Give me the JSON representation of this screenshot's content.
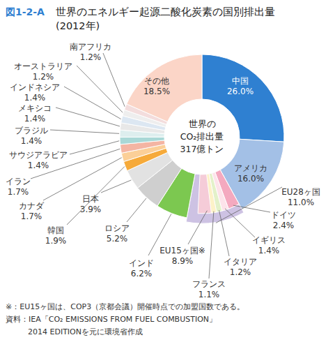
{
  "chart_data": {
    "type": "pie",
    "figure_label": "図1-2-A",
    "title": "世界のエネルギー起源二酸化炭素の国別排出量",
    "subtitle": "(2012年)",
    "center_label": [
      "世界の",
      "CO₂排出量",
      "317億トン"
    ],
    "categories": [
      "中国",
      "アメリカ",
      "EU28ヶ国",
      "インド",
      "ロシア",
      "日本",
      "韓国",
      "カナダ",
      "イラン",
      "サウジアラビア",
      "ブラジル",
      "メキシコ",
      "インドネシア",
      "オーストラリア",
      "南アフリカ",
      "その他"
    ],
    "values": [
      26.0,
      16.0,
      11.0,
      6.2,
      5.2,
      3.9,
      1.9,
      1.7,
      1.7,
      1.4,
      1.4,
      1.4,
      1.4,
      1.2,
      1.2,
      18.5
    ],
    "value_labels": [
      "26.0%",
      "16.0%",
      "11.0%",
      "6.2%",
      "5.2%",
      "3.9%",
      "1.9%",
      "1.7%",
      "1.7%",
      "1.4%",
      "1.4%",
      "1.4%",
      "1.4%",
      "1.2%",
      "1.2%",
      "18.5%"
    ],
    "colors": [
      "#2f80d1",
      "#a3c0e6",
      "#cdc2e3",
      "#7cc850",
      "#cfcfcf",
      "#e2e2e2",
      "#f6aa3a",
      "#fbcf98",
      "#f4b5a3",
      "#a9d8d6",
      "#ddeeee",
      "#e8e8e8",
      "#dce7f2",
      "#eeeeee",
      "#f3dddd",
      "#fbd5c7"
    ],
    "sub_group": {
      "label": "EU15ヶ国※",
      "value": 8.9,
      "value_label": "8.9%",
      "color": "#f5ccd8"
    },
    "breakdown": {
      "categories": [
        "ドイツ",
        "イギリス",
        "イタリア",
        "フランス"
      ],
      "values": [
        2.4,
        1.4,
        1.2,
        1.1
      ],
      "value_labels": [
        "2.4%",
        "1.4%",
        "1.2%",
        "1.1%"
      ],
      "colors": [
        "#f4a9bf",
        "#fde3ea",
        "#e3f1c9",
        "#fdf2c8"
      ]
    },
    "notes": [
      "※：EU15ヶ国は、COP3（京都会議）開催時点での加盟国数である。",
      "資料：IEA「CO₂ EMISSIONS FROM FUEL COMBUSTION」",
      "2014 EDITIONを元に環境省作成"
    ]
  }
}
